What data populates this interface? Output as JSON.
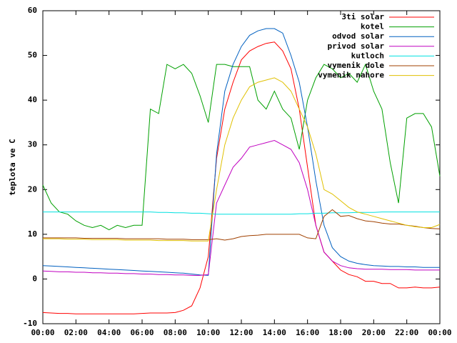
{
  "chart_data": {
    "type": "line",
    "ylabel": "teplota ve C",
    "x": [
      0,
      0.5,
      1,
      1.5,
      2,
      2.5,
      3,
      3.5,
      4,
      4.5,
      5,
      5.5,
      6,
      6.5,
      7,
      7.5,
      8,
      8.5,
      9,
      9.5,
      10,
      10.5,
      11,
      11.5,
      12,
      12.5,
      13,
      13.5,
      14,
      14.5,
      15,
      15.5,
      16,
      16.5,
      17,
      17.5,
      18,
      18.5,
      19,
      19.5,
      20,
      20.5,
      21,
      21.5,
      22,
      22.5,
      23,
      23.5,
      24
    ],
    "xlim": [
      0,
      24
    ],
    "xticks": [
      {
        "value": 0,
        "label": "00:00"
      },
      {
        "value": 2,
        "label": "02:00"
      },
      {
        "value": 4,
        "label": "04:00"
      },
      {
        "value": 6,
        "label": "06:00"
      },
      {
        "value": 8,
        "label": "08:00"
      },
      {
        "value": 10,
        "label": "10:00"
      },
      {
        "value": 12,
        "label": "12:00"
      },
      {
        "value": 14,
        "label": "14:00"
      },
      {
        "value": 16,
        "label": "16:00"
      },
      {
        "value": 18,
        "label": "18:00"
      },
      {
        "value": 20,
        "label": "20:00"
      },
      {
        "value": 22,
        "label": "22:00"
      },
      {
        "value": 24,
        "label": "00:00"
      }
    ],
    "ylim": [
      -10,
      60
    ],
    "yticks": [
      -10,
      0,
      10,
      20,
      30,
      40,
      50,
      60
    ],
    "legend": "top-right",
    "series": [
      {
        "name": "3ti solar",
        "color": "#ff0000",
        "values": [
          -7.5,
          -7.6,
          -7.7,
          -7.7,
          -7.8,
          -7.8,
          -7.8,
          -7.8,
          -7.8,
          -7.8,
          -7.8,
          -7.8,
          -7.7,
          -7.6,
          -7.6,
          -7.6,
          -7.5,
          -7,
          -6,
          -2,
          5,
          27,
          38,
          44,
          49,
          51,
          52,
          52.7,
          53,
          51,
          47,
          38,
          25,
          12,
          6,
          4,
          2,
          1,
          0.5,
          -0.5,
          -0.5,
          -1,
          -1,
          -2,
          -2,
          -1.8,
          -2,
          -2,
          -1.8
        ]
      },
      {
        "name": "kotel",
        "color": "#00a000",
        "values": [
          21,
          17,
          15,
          14.5,
          13,
          12,
          11.5,
          12,
          11,
          12,
          11.5,
          12,
          12,
          38,
          37,
          48,
          47,
          48,
          46,
          41,
          35,
          48,
          48,
          47.5,
          47.5,
          47.5,
          40,
          38,
          42,
          38,
          36,
          29,
          40,
          45,
          48,
          47,
          45,
          46,
          44,
          48,
          42,
          38,
          26,
          17,
          36,
          37,
          37,
          34,
          23
        ]
      },
      {
        "name": "odvod solar",
        "color": "#0060c0",
        "values": [
          3,
          2.9,
          2.8,
          2.7,
          2.6,
          2.5,
          2.4,
          2.3,
          2.2,
          2.1,
          2,
          1.9,
          1.8,
          1.7,
          1.6,
          1.5,
          1.4,
          1.3,
          1.1,
          0.9,
          0.8,
          28,
          42,
          48,
          52,
          54.5,
          55.5,
          56,
          56,
          55,
          50,
          44,
          34,
          22,
          12,
          7,
          5,
          4,
          3.5,
          3.2,
          3,
          2.9,
          2.8,
          2.8,
          2.7,
          2.7,
          2.6,
          2.6,
          2.6
        ]
      },
      {
        "name": "privod solar",
        "color": "#c000c0",
        "values": [
          1.8,
          1.7,
          1.6,
          1.6,
          1.5,
          1.5,
          1.4,
          1.4,
          1.3,
          1.3,
          1.2,
          1.2,
          1.1,
          1.1,
          1,
          1,
          0.9,
          0.9,
          0.8,
          0.8,
          1,
          17,
          21,
          25,
          27,
          29.5,
          30,
          30.5,
          31,
          30,
          29,
          26,
          20,
          12,
          6,
          4,
          3,
          2.5,
          2.3,
          2.2,
          2.2,
          2.2,
          2.1,
          2.1,
          2.1,
          2,
          2,
          2,
          2
        ]
      },
      {
        "name": "kutloch",
        "color": "#00e0e0",
        "values": [
          15,
          15,
          15,
          15,
          15,
          15,
          15,
          15,
          15,
          15,
          15,
          15,
          15,
          15,
          14.9,
          14.9,
          14.8,
          14.8,
          14.7,
          14.7,
          14.6,
          14.5,
          14.5,
          14.5,
          14.5,
          14.5,
          14.5,
          14.5,
          14.5,
          14.5,
          14.5,
          14.6,
          14.6,
          14.7,
          14.7,
          14.8,
          14.8,
          14.8,
          14.9,
          14.9,
          14.9,
          15,
          15,
          15,
          15,
          15,
          15,
          15,
          15
        ]
      },
      {
        "name": "vymenik dole",
        "color": "#a04000",
        "values": [
          9.2,
          9.2,
          9.2,
          9.2,
          9.2,
          9.1,
          9.1,
          9.1,
          9.1,
          9.1,
          9,
          9,
          9,
          9,
          9,
          8.9,
          8.9,
          8.9,
          8.8,
          8.8,
          8.8,
          9,
          8.7,
          9,
          9.5,
          9.7,
          9.8,
          10,
          10,
          10,
          10,
          10,
          9.2,
          9,
          14,
          15.5,
          14,
          14.2,
          13.5,
          13,
          12.8,
          12.5,
          12.3,
          12.3,
          12,
          11.8,
          11.5,
          11.3,
          11.2
        ]
      },
      {
        "name": "vymenik nahore",
        "color": "#e0c000",
        "values": [
          9,
          9,
          9,
          8.9,
          8.9,
          8.9,
          8.8,
          8.8,
          8.8,
          8.8,
          8.7,
          8.7,
          8.7,
          8.7,
          8.6,
          8.6,
          8.6,
          8.6,
          8.5,
          8.5,
          8.5,
          20,
          30,
          36,
          40,
          43,
          44,
          44.5,
          45,
          44,
          42,
          38,
          34,
          28,
          20,
          19,
          17.5,
          16,
          15,
          14.5,
          14,
          13.5,
          13,
          12.5,
          12,
          11.7,
          11.5,
          11.5,
          12.2
        ]
      }
    ]
  }
}
